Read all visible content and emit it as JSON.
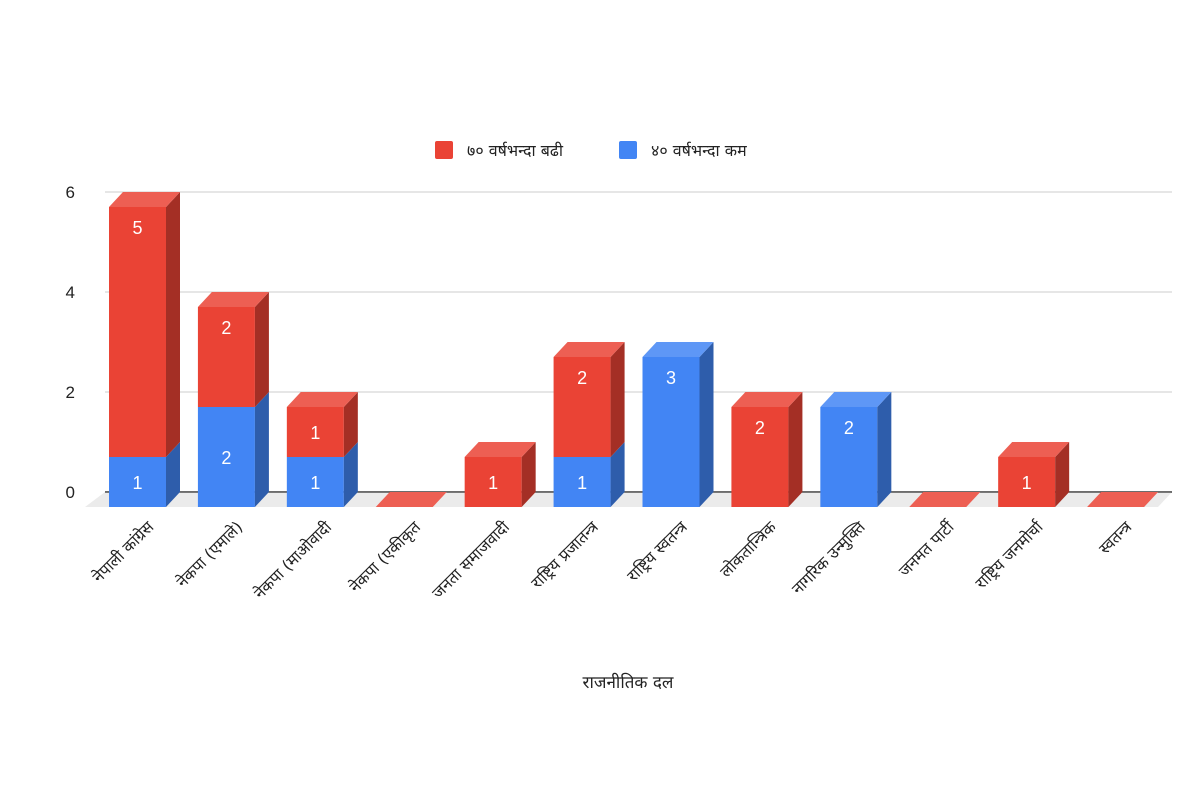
{
  "chart_data": {
    "type": "bar",
    "stacked": true,
    "style": "3d",
    "title": "",
    "xlabel": "राजनीतिक दल",
    "ylabel": "",
    "ylim": [
      0,
      6
    ],
    "yticks": [
      "0",
      "2",
      "4",
      "6"
    ],
    "legend_position": "top",
    "categories": [
      "नेपाली कांग्रेस",
      "नेकपा (एमाले)",
      "नेकपा (माओवादी",
      "नेकपा (एकीकृत",
      "जनता समाजवादी",
      "राष्ट्रिय प्रजातन्त्र",
      "राष्ट्रिय स्वतन्त्र",
      "लोकतान्त्रिक",
      "नागरिक उन्मुक्ति",
      "जनमत पार्टी",
      "राष्ट्रिय जनमोर्चा",
      "स्वतन्त्र"
    ],
    "series": [
      {
        "name": "४० वर्षभन्दा कम",
        "color": "#4285f4",
        "values": [
          1,
          2,
          1,
          0,
          0,
          1,
          3,
          0,
          2,
          0,
          0,
          0
        ]
      },
      {
        "name": "७० वर्षभन्दा बढी",
        "color": "#ea4335",
        "values": [
          5,
          2,
          1,
          0,
          1,
          2,
          0,
          2,
          0,
          0,
          1,
          0
        ]
      }
    ],
    "legend_order": [
      1,
      0
    ]
  }
}
